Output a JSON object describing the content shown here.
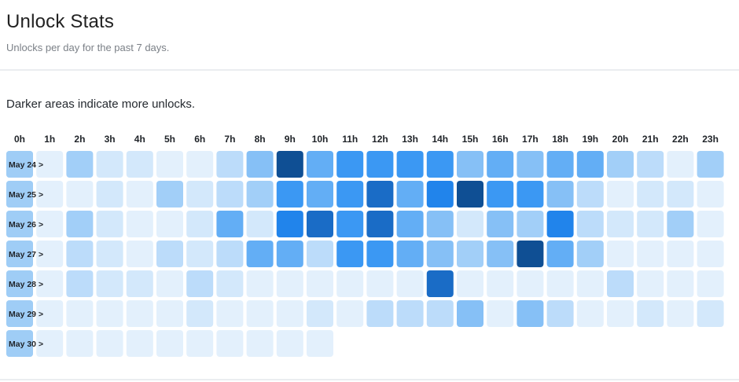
{
  "header": {
    "title": "Unlock Stats",
    "subtitle": "Unlocks per day for the past 7 days."
  },
  "note": "Darker areas indicate more unlocks.",
  "colors": {
    "scale": [
      "#eef6fd",
      "#e3f0fc",
      "#d3e8fb",
      "#bcdcfa",
      "#a2cff8",
      "#86c0f6",
      "#63aef5",
      "#3b98f3",
      "#2184eb",
      "#1a6cc6",
      "#0f4f94"
    ],
    "row_label_bg": "#9fcdf6"
  },
  "chart_data": {
    "type": "heatmap",
    "title": "Unlock Stats",
    "hours": [
      "0h",
      "1h",
      "2h",
      "3h",
      "4h",
      "5h",
      "6h",
      "7h",
      "8h",
      "9h",
      "10h",
      "11h",
      "12h",
      "13h",
      "14h",
      "15h",
      "16h",
      "17h",
      "18h",
      "19h",
      "20h",
      "21h",
      "22h",
      "23h"
    ],
    "days": [
      "May 24 >",
      "May 25 >",
      "May 26 >",
      "May 27 >",
      "May 28 >",
      "May 29 >",
      "May 30 >"
    ],
    "levels": [
      [
        3,
        1,
        4,
        2,
        2,
        1,
        1,
        3,
        5,
        10,
        6,
        7,
        7,
        7,
        7,
        5,
        6,
        5,
        6,
        6,
        4,
        3,
        1,
        4
      ],
      [
        3,
        1,
        1,
        2,
        1,
        4,
        2,
        3,
        4,
        7,
        6,
        7,
        9,
        6,
        8,
        10,
        7,
        7,
        5,
        3,
        1,
        2,
        2,
        1
      ],
      [
        3,
        1,
        4,
        2,
        1,
        1,
        2,
        6,
        2,
        8,
        9,
        7,
        9,
        6,
        5,
        2,
        5,
        4,
        8,
        3,
        2,
        2,
        4,
        1
      ],
      [
        3,
        1,
        3,
        2,
        1,
        3,
        2,
        3,
        6,
        6,
        3,
        7,
        7,
        6,
        5,
        4,
        5,
        10,
        6,
        4,
        1,
        1,
        1,
        1
      ],
      [
        3,
        1,
        3,
        2,
        2,
        1,
        3,
        2,
        1,
        1,
        1,
        1,
        1,
        1,
        9,
        1,
        1,
        1,
        1,
        1,
        3,
        1,
        1,
        1
      ],
      [
        3,
        1,
        1,
        1,
        1,
        1,
        2,
        1,
        1,
        1,
        2,
        1,
        3,
        3,
        3,
        5,
        1,
        5,
        3,
        1,
        1,
        2,
        1,
        2
      ],
      [
        3,
        1,
        1,
        1,
        1,
        1,
        1,
        1,
        1,
        1,
        1
      ]
    ],
    "legend": "none",
    "grid": false
  }
}
